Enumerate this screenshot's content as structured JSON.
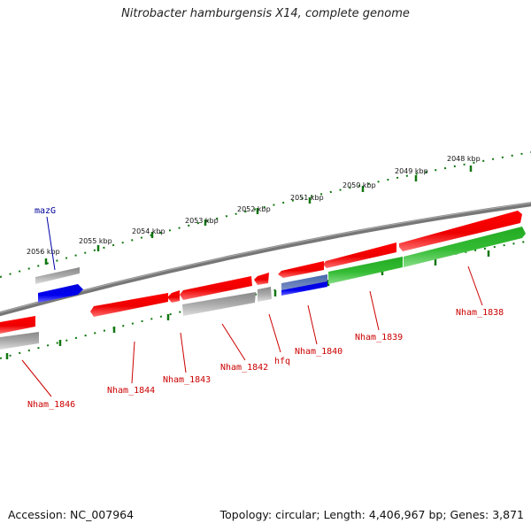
{
  "title": "Nitrobacter hamburgensis X14, complete genome",
  "footer": {
    "accession": "Accession: NC_007964",
    "summary": "Topology: circular; Length: 4,406,967 bp; Genes: 3,871"
  },
  "scale": {
    "unit": "kbp",
    "ticks": [
      "2048 kbp",
      "2049 kbp",
      "2050 kbp",
      "2051 kbp",
      "2052 kbp",
      "2053 kbp",
      "2054 kbp",
      "2055 kbp",
      "2056 kbp"
    ]
  },
  "genes": {
    "top": [
      {
        "id": "mazG",
        "label": "mazG",
        "strand": "forward",
        "color": "#0000ee",
        "label_color": "#000099"
      }
    ],
    "bottom": [
      {
        "id": "Nham_1838",
        "label": "Nham_1838",
        "strand": "forward",
        "color": "#33bb33",
        "label_color": "#cc0000"
      },
      {
        "id": "Nham_1839",
        "label": "Nham_1839",
        "strand": "forward",
        "color": "#33bb33",
        "label_color": "#cc0000"
      },
      {
        "id": "Nham_1840",
        "label": "Nham_1840",
        "strand": "forward",
        "color": "#1a1aee",
        "label_color": "#cc0000"
      },
      {
        "id": "hfq",
        "label": "hfq",
        "strand": "reverse",
        "color": "#ee0000",
        "label_color": "#cc0000"
      },
      {
        "id": "Nham_1842",
        "label": "Nham_1842",
        "strand": "reverse",
        "color": "#ee0000",
        "label_color": "#cc0000"
      },
      {
        "id": "Nham_1843",
        "label": "Nham_1843",
        "strand": "reverse",
        "color": "#ee0000",
        "label_color": "#cc0000"
      },
      {
        "id": "Nham_1844",
        "label": "Nham_1844",
        "strand": "reverse",
        "color": "#ee0000",
        "label_color": "#cc0000"
      },
      {
        "id": "Nham_1846",
        "label": "Nham_1846",
        "strand": "reverse",
        "color": "#ee0000",
        "label_color": "#cc0000"
      }
    ]
  },
  "colors": {
    "backbone": "#777777",
    "scale_ticks": "#116611",
    "cds_reverse": "#ee0000",
    "cds_forward": "#33bb33",
    "rna": "#1a1aee",
    "pseudo": "#aaaaaa"
  }
}
